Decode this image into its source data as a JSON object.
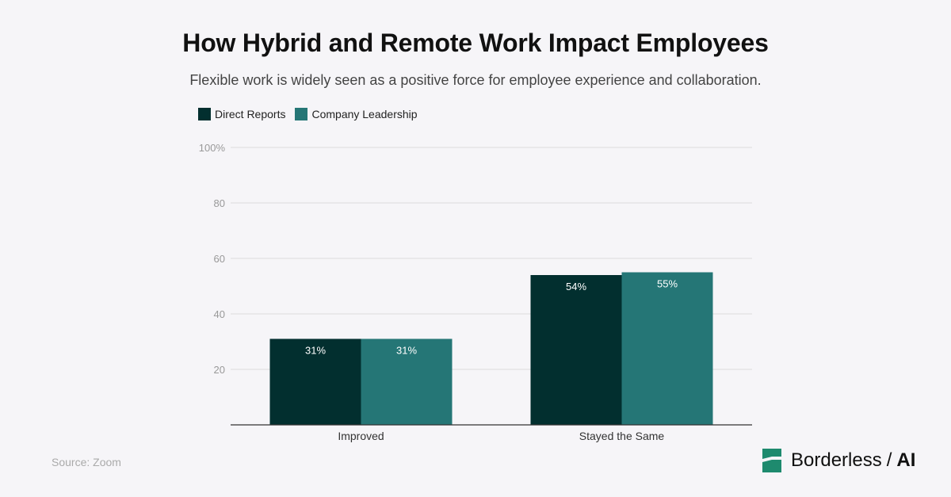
{
  "header": {
    "title": "How Hybrid and Remote Work Impact Employees",
    "subtitle": "Flexible work is widely seen as a positive force for employee experience and collaboration."
  },
  "footer": {
    "source": "Source: Zoom",
    "brand_name": "Borderless",
    "brand_separator": "/",
    "brand_suffix": "AI",
    "brand_logo_icon": "borderless-logo-icon",
    "brand_color": "#1e8a6e"
  },
  "chart_data": {
    "type": "bar",
    "categories": [
      "Improved",
      "Stayed the Same"
    ],
    "series": [
      {
        "name": "Direct Reports",
        "values": [
          31,
          54
        ],
        "color": "#022f2f",
        "labels": [
          "31%",
          "54%"
        ]
      },
      {
        "name": "Company Leadership",
        "values": [
          31,
          55
        ],
        "color": "#257676",
        "labels": [
          "31%",
          "55%"
        ]
      }
    ],
    "yticks": [
      20,
      40,
      60,
      80,
      100
    ],
    "ytick_labels": [
      "20",
      "40",
      "60",
      "80",
      "100%"
    ],
    "ylim": [
      0,
      100
    ],
    "legend_position": "top-left",
    "grid": true
  }
}
